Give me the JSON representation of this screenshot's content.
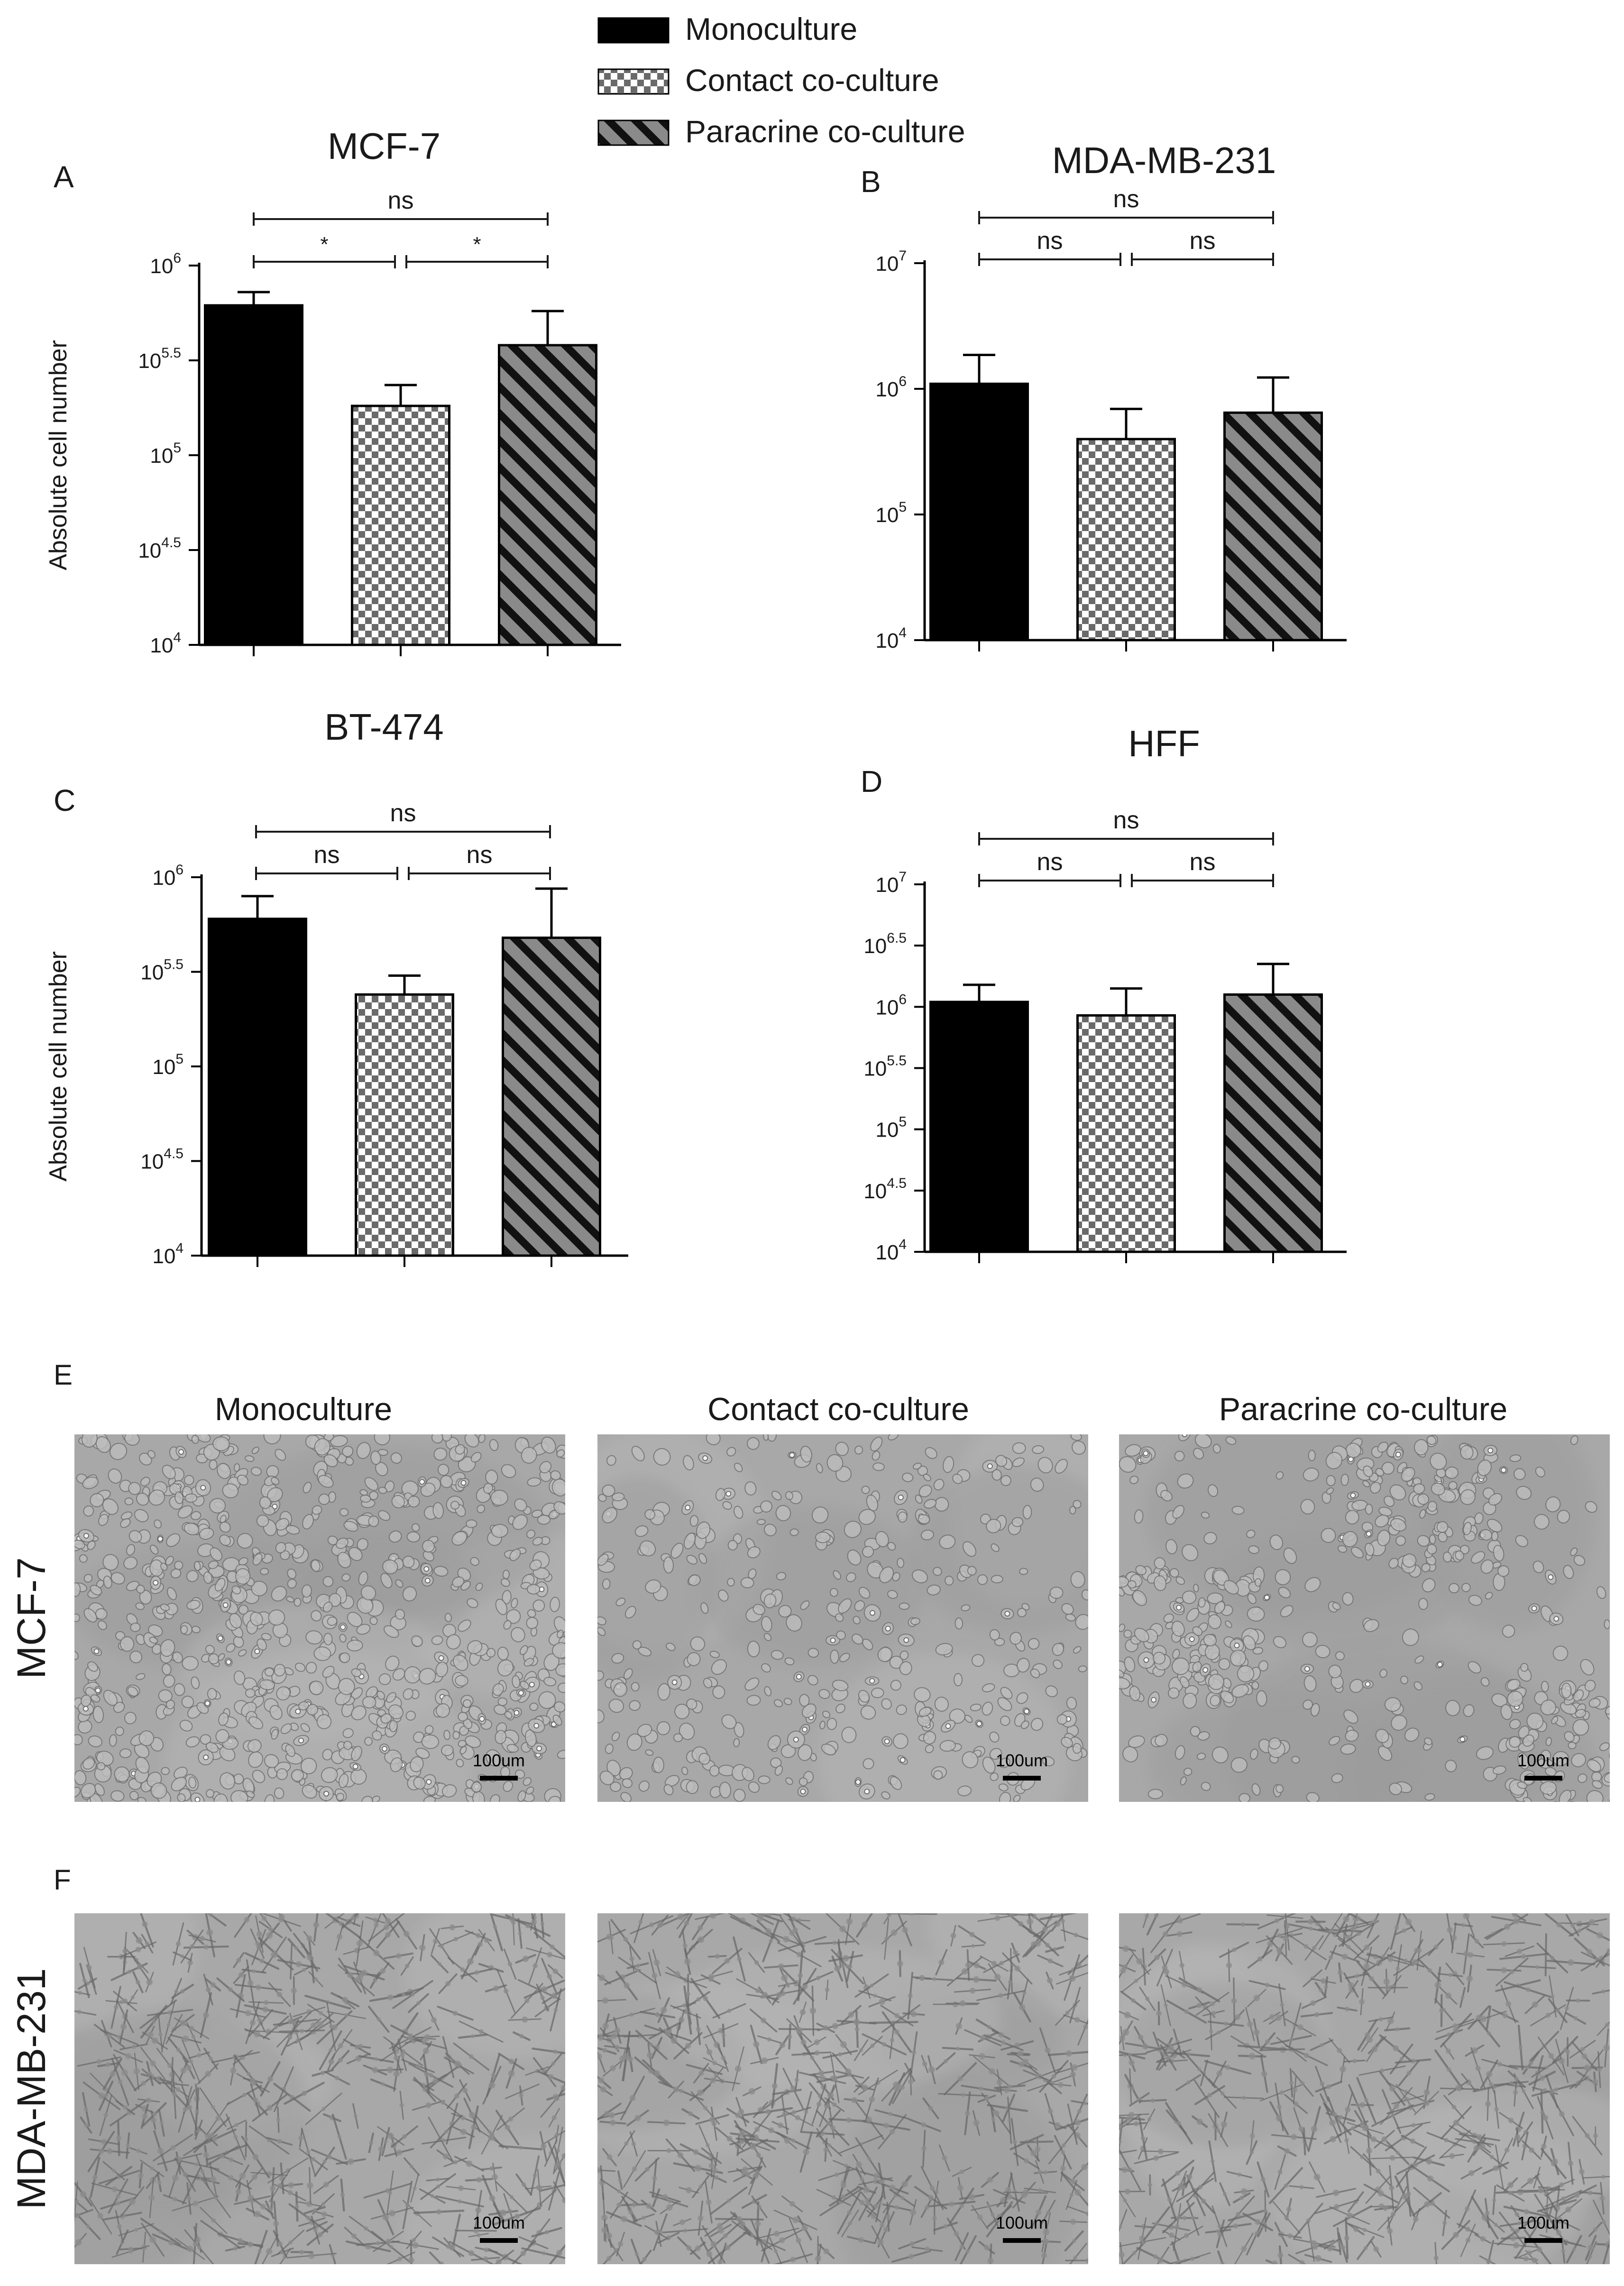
{
  "legend": {
    "placement": "top-center",
    "items": [
      {
        "label": "Monoculture",
        "pattern": "solid",
        "color": "#000000"
      },
      {
        "label": "Contact co-culture",
        "pattern": "checker",
        "color": "#808080"
      },
      {
        "label": "Paracrine co-culture",
        "pattern": "diagonal-stripes",
        "color": "#808080"
      }
    ]
  },
  "chart_data": [
    {
      "type": "bar",
      "panel": "A",
      "title": "MCF-7",
      "ylabel": "Absolute cell number",
      "yscale": "log",
      "ylim": [
        10000,
        1000000
      ],
      "ticks": [
        {
          "base": "10",
          "exp": "4"
        },
        {
          "base": "10",
          "exp": "4.5"
        },
        {
          "base": "10",
          "exp": "5"
        },
        {
          "base": "10",
          "exp": "5.5"
        },
        {
          "base": "10",
          "exp": "6"
        }
      ],
      "categories": [
        "Monoculture",
        "Contact co-culture",
        "Paracrine co-culture"
      ],
      "values": [
        616595,
        181970,
        380189
      ],
      "errors_upper": [
        724436,
        234423,
        575440
      ],
      "significance": [
        {
          "from": 0,
          "to": 2,
          "label": "ns"
        },
        {
          "from": 0,
          "to": 1,
          "label": "*"
        },
        {
          "from": 1,
          "to": 2,
          "label": "*"
        }
      ]
    },
    {
      "type": "bar",
      "panel": "B",
      "title": "MDA-MB-231",
      "ylabel": "",
      "yscale": "log",
      "ylim": [
        10000,
        10000000
      ],
      "ticks": [
        {
          "base": "10",
          "exp": "4"
        },
        {
          "base": "10",
          "exp": "5"
        },
        {
          "base": "10",
          "exp": "6"
        },
        {
          "base": "10",
          "exp": "7"
        }
      ],
      "categories": [
        "Monoculture",
        "Contact co-culture",
        "Paracrine co-culture"
      ],
      "values": [
        1096478,
        398107,
        645654
      ],
      "errors_upper": [
        1862087,
        691831,
        1230269
      ],
      "significance": [
        {
          "from": 0,
          "to": 2,
          "label": "ns"
        },
        {
          "from": 0,
          "to": 1,
          "label": "ns"
        },
        {
          "from": 1,
          "to": 2,
          "label": "ns"
        }
      ]
    },
    {
      "type": "bar",
      "panel": "C",
      "title": "BT-474",
      "ylabel": "Absolute cell number",
      "yscale": "log",
      "ylim": [
        10000,
        1000000
      ],
      "ticks": [
        {
          "base": "10",
          "exp": "4"
        },
        {
          "base": "10",
          "exp": "4.5"
        },
        {
          "base": "10",
          "exp": "5"
        },
        {
          "base": "10",
          "exp": "5.5"
        },
        {
          "base": "10",
          "exp": "6"
        }
      ],
      "categories": [
        "Monoculture",
        "Contact co-culture",
        "Paracrine co-culture"
      ],
      "values": [
        602560,
        239883,
        478630
      ],
      "errors_upper": [
        794328,
        302000,
        870964
      ],
      "significance": [
        {
          "from": 0,
          "to": 2,
          "label": "ns"
        },
        {
          "from": 0,
          "to": 1,
          "label": "ns"
        },
        {
          "from": 1,
          "to": 2,
          "label": "ns"
        }
      ]
    },
    {
      "type": "bar",
      "panel": "D",
      "title": "HFF",
      "ylabel": "",
      "yscale": "log",
      "ylim": [
        10000,
        10000000
      ],
      "ticks": [
        {
          "base": "10",
          "exp": "4"
        },
        {
          "base": "10",
          "exp": "4.5"
        },
        {
          "base": "10",
          "exp": "5"
        },
        {
          "base": "10",
          "exp": "5.5"
        },
        {
          "base": "10",
          "exp": "6"
        },
        {
          "base": "10",
          "exp": "6.5"
        },
        {
          "base": "10",
          "exp": "7"
        }
      ],
      "categories": [
        "Monoculture",
        "Contact co-culture",
        "Paracrine co-culture"
      ],
      "values": [
        1096478,
        851138,
        1258925
      ],
      "errors_upper": [
        1513561,
        1412538,
        2238721
      ],
      "significance": [
        {
          "from": 0,
          "to": 2,
          "label": "ns"
        },
        {
          "from": 0,
          "to": 1,
          "label": "ns"
        },
        {
          "from": 1,
          "to": 2,
          "label": "ns"
        }
      ]
    }
  ],
  "micrographs": {
    "column_headers": [
      "Monoculture",
      "Contact co-culture",
      "Paracrine co-culture"
    ],
    "rows": [
      {
        "panel": "E",
        "label": "MCF-7",
        "cell_type": "epithelial",
        "scale_bar": "100um"
      },
      {
        "panel": "F",
        "label": "MDA-MB-231",
        "cell_type": "spindle",
        "scale_bar": "100um"
      }
    ]
  }
}
